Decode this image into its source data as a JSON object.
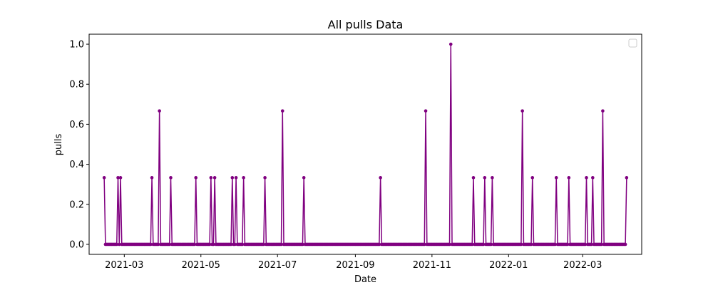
{
  "chart_data": {
    "type": "line",
    "title": "All pulls Data",
    "xlabel": "Date",
    "ylabel": "pulls",
    "x_start": "2021-02-13",
    "x_end": "2022-04-05",
    "xlim": [
      "2021-02-01",
      "2022-04-17"
    ],
    "ylim": [
      -0.05,
      1.05
    ],
    "x_ticks": [
      {
        "date": "2021-03-01",
        "label": "2021-03"
      },
      {
        "date": "2021-05-01",
        "label": "2021-05"
      },
      {
        "date": "2021-07-01",
        "label": "2021-07"
      },
      {
        "date": "2021-09-01",
        "label": "2021-09"
      },
      {
        "date": "2021-11-01",
        "label": "2021-11"
      },
      {
        "date": "2022-01-01",
        "label": "2022-01"
      },
      {
        "date": "2022-03-01",
        "label": "2022-03"
      }
    ],
    "y_ticks": [
      "0.0",
      "0.2",
      "0.4",
      "0.6",
      "0.8",
      "1.0"
    ],
    "grid": false,
    "legend": "top-right (empty)",
    "series": [
      {
        "color": "#800080",
        "marker": "circle",
        "nonzero_points": [
          {
            "x": "2021-02-13",
            "y": 0.3333
          },
          {
            "x": "2021-02-24",
            "y": 0.3333
          },
          {
            "x": "2021-02-26",
            "y": 0.3333
          },
          {
            "x": "2021-03-23",
            "y": 0.3333
          },
          {
            "x": "2021-03-29",
            "y": 0.6667
          },
          {
            "x": "2021-04-07",
            "y": 0.3333
          },
          {
            "x": "2021-04-27",
            "y": 0.3333
          },
          {
            "x": "2021-05-09",
            "y": 0.3333
          },
          {
            "x": "2021-05-12",
            "y": 0.3333
          },
          {
            "x": "2021-05-26",
            "y": 0.3333
          },
          {
            "x": "2021-05-29",
            "y": 0.3333
          },
          {
            "x": "2021-06-04",
            "y": 0.3333
          },
          {
            "x": "2021-06-21",
            "y": 0.3333
          },
          {
            "x": "2021-07-05",
            "y": 0.6667
          },
          {
            "x": "2021-07-22",
            "y": 0.3333
          },
          {
            "x": "2021-09-21",
            "y": 0.3333
          },
          {
            "x": "2021-10-27",
            "y": 0.6667
          },
          {
            "x": "2021-11-16",
            "y": 1.0
          },
          {
            "x": "2021-12-04",
            "y": 0.3333
          },
          {
            "x": "2021-12-13",
            "y": 0.3333
          },
          {
            "x": "2021-12-19",
            "y": 0.3333
          },
          {
            "x": "2022-01-12",
            "y": 0.6667
          },
          {
            "x": "2022-01-20",
            "y": 0.3333
          },
          {
            "x": "2022-02-08",
            "y": 0.3333
          },
          {
            "x": "2022-02-18",
            "y": 0.3333
          },
          {
            "x": "2022-03-04",
            "y": 0.3333
          },
          {
            "x": "2022-03-09",
            "y": 0.3333
          },
          {
            "x": "2022-03-17",
            "y": 0.6667
          },
          {
            "x": "2022-04-05",
            "y": 0.3333
          }
        ],
        "default_y": 0.0
      }
    ]
  }
}
